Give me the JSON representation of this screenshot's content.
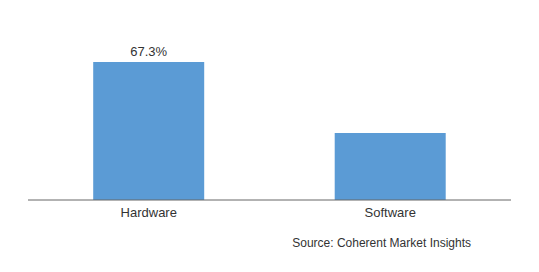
{
  "chart_data": {
    "type": "bar",
    "categories": [
      "Hardware",
      "Software"
    ],
    "values": [
      67.3,
      32.7
    ],
    "color": "#5b9bd5",
    "ylim": [
      0,
      82
    ],
    "tick_labels": "x",
    "data_labels": true,
    "value_labels": [
      "67.3%",
      null
    ],
    "annotations": [
      "Source: Coherent Market Insights"
    ]
  }
}
